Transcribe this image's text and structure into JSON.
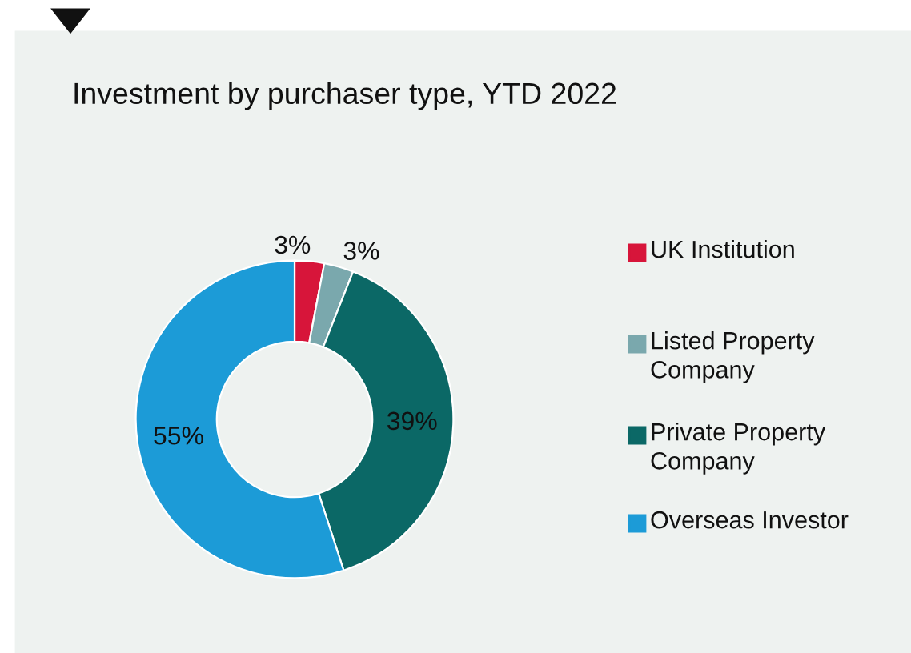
{
  "chart_data": {
    "type": "donut",
    "title": "Investment by purchaser type, YTD 2022",
    "categories": [
      "UK Institution",
      "Listed Property Company",
      "Private Property Company",
      "Overseas Investor"
    ],
    "values": [
      3,
      3,
      39,
      55
    ],
    "colors": [
      "#d7153a",
      "#7aa8ad",
      "#0b6866",
      "#1c9bd7"
    ],
    "value_labels": [
      "3%",
      "3%",
      "39%",
      "55%"
    ],
    "legend": "right"
  }
}
